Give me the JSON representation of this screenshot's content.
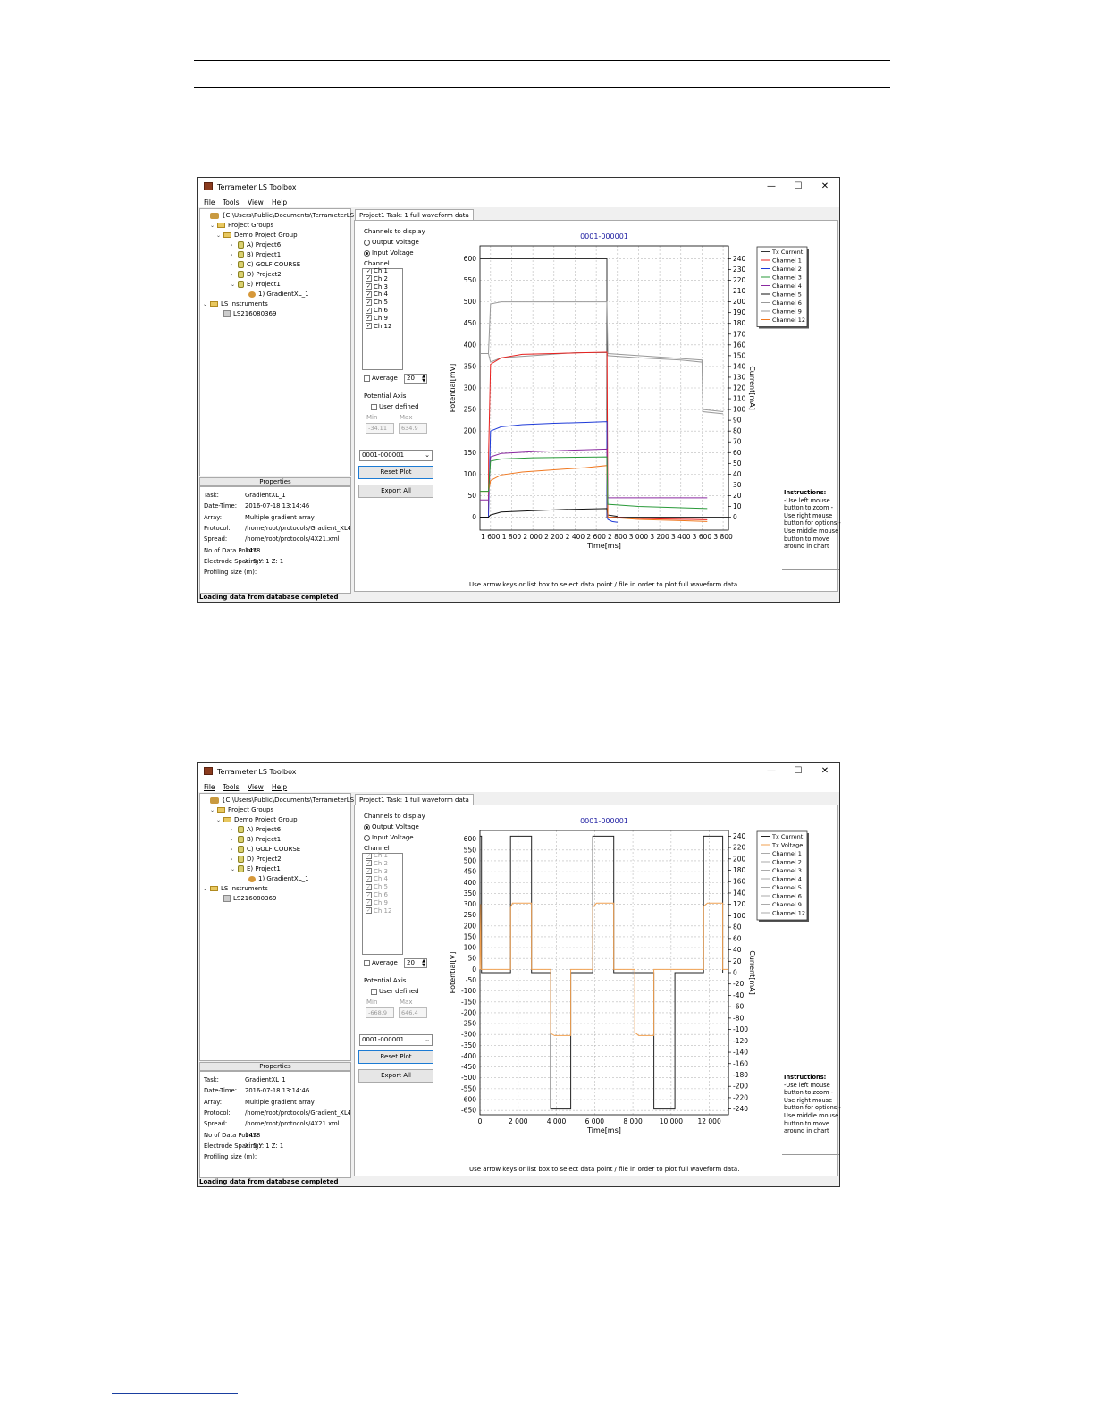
{
  "screenshots": [
    {
      "app_title": "Terrameter LS Toolbox",
      "window_buttons": [
        "—",
        "☐",
        "✕"
      ],
      "menu": [
        "File",
        "Tools",
        "View",
        "Help"
      ],
      "tree": [
        {
          "label": "{C:\\Users\\Public\\Documents\\TerrameterLS}",
          "icon": "root-icon"
        },
        {
          "label": "Project Groups",
          "icon": "folder-icon"
        },
        {
          "label": "Demo Project Group",
          "icon": "folder-icon"
        },
        {
          "label": "A) Project6",
          "icon": "database-icon"
        },
        {
          "label": "B) Project1",
          "icon": "database-icon"
        },
        {
          "label": "C) GOLF COURSE",
          "icon": "database-icon"
        },
        {
          "label": "D) Project2",
          "icon": "database-icon"
        },
        {
          "label": "E) Project1",
          "icon": "database-icon"
        },
        {
          "label": "1) GradientXL_1",
          "icon": "task-icon"
        },
        {
          "label": "LS Instruments",
          "icon": "folder-icon"
        },
        {
          "label": "LS216080369",
          "icon": "instrument-icon"
        }
      ],
      "properties_header": "Properties",
      "properties": [
        {
          "key": "Task:",
          "value": "GradientXL_1"
        },
        {
          "key": "Date-Time:",
          "value": "2016-07-18 13:14:46"
        },
        {
          "key": "Array:",
          "value": "Multiple gradient array"
        },
        {
          "key": "Protocol:",
          "value": "/home/root/protocols/Gradient_XL4"
        },
        {
          "key": "Spread:",
          "value": "/home/root/protocols/4X21.xml"
        },
        {
          "key": "No of Data Points:",
          "value": "1478"
        },
        {
          "key": "Electrode Spacing:",
          "value": "X: 5   Y: 1   Z: 1"
        },
        {
          "key": "Profiling size (m):",
          "value": ""
        }
      ],
      "status": "Loading data from database completed",
      "tab": "Project1 Task: 1 full waveform data",
      "channels_to_display": "Channels to display",
      "output_voltage_label": "Output Voltage",
      "input_voltage_label": "Input Voltage",
      "selected_mode": "input",
      "channel_label": "Channel",
      "channels": [
        "Ch 1",
        "Ch 2",
        "Ch 3",
        "Ch 4",
        "Ch 5",
        "Ch 6",
        "Ch 9",
        "Ch 12"
      ],
      "channels_enabled": true,
      "average_label": "Average",
      "average_value": "20",
      "potential_axis_label": "Potential Axis",
      "user_defined_label": "User defined",
      "min_label": "Min",
      "max_label": "Max",
      "min_value": "-34.11",
      "max_value": "634.9",
      "file_select": "0001-000001",
      "reset_plot": "Reset Plot",
      "export_all": "Export All",
      "footer_hint": "Use arrow keys or list box to select data point / file in order to plot full waveform data.",
      "instructions_title": "Instructions:",
      "instructions_text": "-Use left mouse button to zoom -Use right mouse button for options -Use middle mouse button to move around in chart",
      "colors": {
        "accent": "#1c7bd4",
        "title_blue": "#1a1aa0"
      },
      "chart_data": {
        "type": "line",
        "title": "0001-000001",
        "xlabel": "Time[ms]",
        "ylabel": "Potential[mV]",
        "y2label": "Current[mA]",
        "xlim": [
          1500,
          3850
        ],
        "ylim": [
          -30,
          630
        ],
        "y2lim": [
          -12,
          252
        ],
        "x_ticks": [
          "1 600",
          "1 800",
          "2 000",
          "2 200",
          "2 400",
          "2 600",
          "2 800",
          "3 000",
          "3 200",
          "3 400",
          "3 600",
          "3 800"
        ],
        "y_ticks": [
          "0",
          "50",
          "100",
          "150",
          "200",
          "250",
          "300",
          "350",
          "400",
          "450",
          "500",
          "550",
          "600"
        ],
        "y2_ticks": [
          "0",
          "10",
          "20",
          "30",
          "40",
          "50",
          "60",
          "70",
          "80",
          "90",
          "100",
          "110",
          "120",
          "130",
          "140",
          "150",
          "160",
          "170",
          "180",
          "190",
          "200",
          "210",
          "220",
          "230",
          "240"
        ],
        "grid": true,
        "legend_placement": "right",
        "legend": [
          "Tx Current",
          "Channel 1",
          "Channel 2",
          "Channel 3",
          "Channel 4",
          "Channel 5",
          "Channel 6",
          "Channel 9",
          "Channel 12"
        ],
        "series": [
          {
            "name": "Tx Current",
            "axis": "y2",
            "color": "#333333",
            "x": [
              1500,
              1580,
              1580,
              2700,
              2700,
              3850
            ],
            "y": [
              240,
              240,
              240,
              240,
              0,
              0
            ]
          },
          {
            "name": "Channel 6",
            "color": "#999999",
            "x": [
              1500,
              1580,
              1600,
              1700,
              2700,
              2710,
              3600,
              3610,
              3800
            ],
            "y": [
              380,
              380,
              495,
              500,
              500,
              380,
              365,
              245,
              240
            ]
          },
          {
            "name": "Channel 9",
            "color": "#999999",
            "x": [
              1500,
              1580,
              1600,
              1700,
              2000,
              2400,
              2700,
              2710,
              3000,
              3400,
              3600,
              3610,
              3800
            ],
            "y": [
              380,
              380,
              360,
              370,
              375,
              382,
              382,
              375,
              370,
              365,
              360,
              250,
              245
            ]
          },
          {
            "name": "Channel 1",
            "color": "#e8201e",
            "x": [
              1500,
              1580,
              1582,
              1600,
              1700,
              1900,
              2200,
              2500,
              2700,
              2702,
              2710,
              2900,
              3200,
              3500,
              3650
            ],
            "y": [
              0,
              0,
              150,
              355,
              370,
              378,
              380,
              382,
              383,
              380,
              0,
              -2,
              -4,
              -5,
              -6
            ]
          },
          {
            "name": "Channel 2",
            "color": "#1e3ad8",
            "x": [
              1500,
              1580,
              1600,
              1700,
              1900,
              2200,
              2500,
              2700,
              2702,
              2710,
              2750,
              2800
            ],
            "y": [
              0,
              0,
              200,
              210,
              215,
              218,
              220,
              222,
              0,
              -5,
              -10,
              -12
            ]
          },
          {
            "name": "Channel 4",
            "color": "#8a2aa0",
            "x": [
              1500,
              1580,
              1600,
              1700,
              2000,
              2300,
              2700,
              2710,
              3000,
              3400,
              3650
            ],
            "y": [
              40,
              40,
              140,
              148,
              152,
              155,
              158,
              45,
              45,
              45,
              45
            ]
          },
          {
            "name": "Channel 5",
            "color": "#111111",
            "x": [
              1500,
              1580,
              1600,
              1700,
              2000,
              2300,
              2700,
              2710,
              2800
            ],
            "y": [
              0,
              0,
              5,
              12,
              15,
              18,
              20,
              5,
              2
            ]
          },
          {
            "name": "Channel 12",
            "color": "#f07820",
            "x": [
              1500,
              1580,
              1600,
              1700,
              1900,
              2200,
              2500,
              2700,
              2710,
              3000,
              3400,
              3650
            ],
            "y": [
              60,
              60,
              85,
              98,
              105,
              110,
              115,
              120,
              0,
              -5,
              -8,
              -10
            ]
          },
          {
            "name": "Channel 3",
            "color": "#2a9a3a",
            "x": [
              1500,
              1580,
              1600,
              1700,
              2000,
              2700,
              2710,
              3000,
              3650
            ],
            "y": [
              60,
              60,
              130,
              135,
              138,
              140,
              30,
              25,
              20
            ]
          }
        ]
      }
    },
    {
      "app_title": "Terrameter LS Toolbox",
      "window_buttons": [
        "—",
        "☐",
        "✕"
      ],
      "menu": [
        "File",
        "Tools",
        "View",
        "Help"
      ],
      "tree": [
        {
          "label": "{C:\\Users\\Public\\Documents\\TerrameterLS}",
          "icon": "root-icon"
        },
        {
          "label": "Project Groups",
          "icon": "folder-icon"
        },
        {
          "label": "Demo Project Group",
          "icon": "folder-icon"
        },
        {
          "label": "A) Project6",
          "icon": "database-icon"
        },
        {
          "label": "B) Project1",
          "icon": "database-icon"
        },
        {
          "label": "C) GOLF COURSE",
          "icon": "database-icon"
        },
        {
          "label": "D) Project2",
          "icon": "database-icon"
        },
        {
          "label": "E) Project1",
          "icon": "database-icon"
        },
        {
          "label": "1) GradientXL_1",
          "icon": "task-icon"
        },
        {
          "label": "LS Instruments",
          "icon": "folder-icon"
        },
        {
          "label": "LS216080369",
          "icon": "instrument-icon"
        }
      ],
      "properties_header": "Properties",
      "properties": [
        {
          "key": "Task:",
          "value": "GradientXL_1"
        },
        {
          "key": "Date-Time:",
          "value": "2016-07-18 13:14:46"
        },
        {
          "key": "Array:",
          "value": "Multiple gradient array"
        },
        {
          "key": "Protocol:",
          "value": "/home/root/protocols/Gradient_XL4"
        },
        {
          "key": "Spread:",
          "value": "/home/root/protocols/4X21.xml"
        },
        {
          "key": "No of Data Points:",
          "value": "1478"
        },
        {
          "key": "Electrode Spacing:",
          "value": "X: 5   Y: 1   Z: 1"
        },
        {
          "key": "Profiling size (m):",
          "value": ""
        }
      ],
      "status": "Loading data from database completed",
      "tab": "Project1 Task: 1 full waveform data",
      "channels_to_display": "Channels to display",
      "output_voltage_label": "Output Voltage",
      "input_voltage_label": "Input Voltage",
      "selected_mode": "output",
      "channel_label": "Channel",
      "channels": [
        "Ch 1",
        "Ch 2",
        "Ch 3",
        "Ch 4",
        "Ch 5",
        "Ch 6",
        "Ch 9",
        "Ch 12"
      ],
      "channels_enabled": false,
      "average_label": "Average",
      "average_value": "20",
      "potential_axis_label": "Potential Axis",
      "user_defined_label": "User defined",
      "min_label": "Min",
      "max_label": "Max",
      "min_value": "-668.9",
      "max_value": "646.4",
      "file_select": "0001-000001",
      "reset_plot": "Reset Plot",
      "export_all": "Export All",
      "footer_hint": "Use arrow keys or list box to select data point / file in order to plot full waveform data.",
      "instructions_title": "Instructions:",
      "instructions_text": "-Use left mouse button to zoom -Use right mouse button for options -Use middle mouse button to move around in chart",
      "colors": {
        "accent": "#1c7bd4",
        "title_blue": "#1a1aa0"
      },
      "chart_data": {
        "type": "line",
        "title": "0001-000001",
        "xlabel": "Time[ms]",
        "ylabel": "Potential[V]",
        "y2label": "Current[mA]",
        "xlim": [
          0,
          13000
        ],
        "ylim": [
          -670,
          640
        ],
        "y2lim": [
          -250,
          250
        ],
        "x_ticks": [
          "0",
          "2 000",
          "4 000",
          "6 000",
          "8 000",
          "10 000",
          "12 000"
        ],
        "y_ticks": [
          "600",
          "550",
          "500",
          "450",
          "400",
          "350",
          "300",
          "250",
          "200",
          "150",
          "100",
          "50",
          "0",
          "-50",
          "-100",
          "-150",
          "-200",
          "-250",
          "-300",
          "-350",
          "-400",
          "-450",
          "-500",
          "-550",
          "-600",
          "-650"
        ],
        "y2_ticks": [
          "240",
          "220",
          "200",
          "180",
          "160",
          "140",
          "120",
          "100",
          "80",
          "60",
          "40",
          "20",
          "0",
          "-20",
          "-40",
          "-60",
          "-80",
          "-100",
          "-120",
          "-140",
          "-160",
          "-180",
          "-200",
          "-220",
          "-240"
        ],
        "grid": true,
        "legend_placement": "right",
        "legend": [
          "Tx Current",
          "Tx Voltage",
          "Channel 1",
          "Channel 2",
          "Channel 3",
          "Channel 4",
          "Channel 5",
          "Channel 6",
          "Channel 9",
          "Channel 12"
        ],
        "series": [
          {
            "name": "Tx Current",
            "axis": "y2",
            "color": "#222222",
            "x": [
              0,
              0,
              80,
              80,
              1600,
              1600,
              2700,
              2700,
              3700,
              3700,
              4750,
              4750,
              5900,
              5900,
              7000,
              7000,
              9100,
              9100,
              10200,
              10200,
              11700,
              11700,
              12700,
              12700
            ],
            "y": [
              0,
              240,
              240,
              0,
              0,
              240,
              240,
              0,
              0,
              -240,
              -240,
              0,
              0,
              240,
              240,
              0,
              0,
              -240,
              -240,
              0,
              0,
              240,
              240,
              0
            ]
          },
          {
            "name": "Tx Voltage",
            "color": "#f0a050",
            "x": [
              0,
              40,
              60,
              1600,
              1600,
              1700,
              2700,
              2700,
              3700,
              3700,
              3900,
              4750,
              4750,
              5900,
              5900,
              6100,
              7000,
              7000,
              8100,
              8100,
              8300,
              9100,
              9100,
              11700,
              11700,
              11900,
              12700,
              12700,
              13000
            ],
            "y": [
              0,
              300,
              0,
              0,
              285,
              305,
              305,
              0,
              0,
              -295,
              -305,
              -305,
              0,
              0,
              285,
              305,
              305,
              0,
              0,
              -290,
              -305,
              -305,
              0,
              0,
              290,
              305,
              305,
              0,
              0
            ]
          }
        ]
      }
    }
  ]
}
